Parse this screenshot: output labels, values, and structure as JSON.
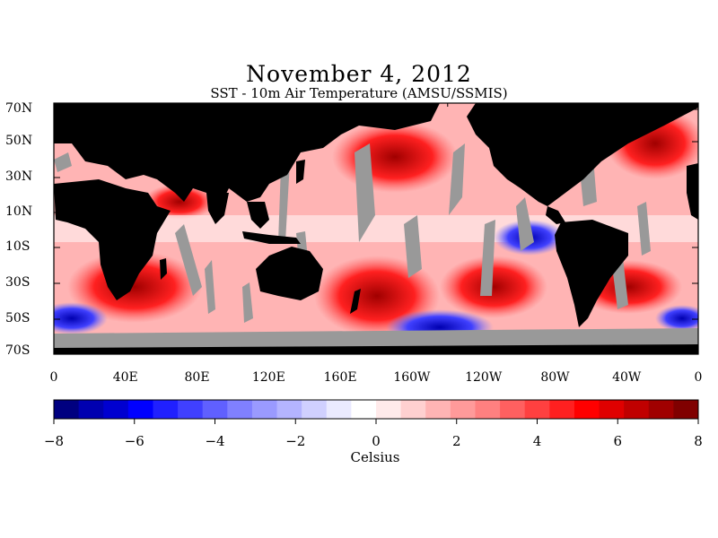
{
  "title": "November 4, 2012",
  "subtitle": "SST - 10m Air Temperature (AMSU/SSMIS)",
  "map": {
    "lat_labels": [
      "70N",
      "50N",
      "30N",
      "10N",
      "10S",
      "30S",
      "50S",
      "70S"
    ],
    "lon_labels": [
      "0",
      "40E",
      "80E",
      "120E",
      "160E",
      "160W",
      "120W",
      "80W",
      "40W",
      "0"
    ],
    "land_color": "#000000",
    "missing_color": "#999999"
  },
  "colorbar": {
    "min": -8,
    "max": 8,
    "tick_labels": [
      "-8",
      "-6",
      "-4",
      "-2",
      "0",
      "2",
      "4",
      "6",
      "8"
    ],
    "units": "Celsius",
    "colors": [
      "#000080",
      "#0000b0",
      "#0000d0",
      "#0000ff",
      "#2020ff",
      "#4040ff",
      "#6060ff",
      "#8080ff",
      "#9a9aff",
      "#b4b4ff",
      "#d0d0ff",
      "#eaeaff",
      "#ffffff",
      "#ffeaea",
      "#ffd0d0",
      "#ffb4b4",
      "#ff9a9a",
      "#ff8080",
      "#ff6060",
      "#ff4040",
      "#ff2020",
      "#ff0000",
      "#e00000",
      "#c00000",
      "#a00000",
      "#800000"
    ]
  }
}
